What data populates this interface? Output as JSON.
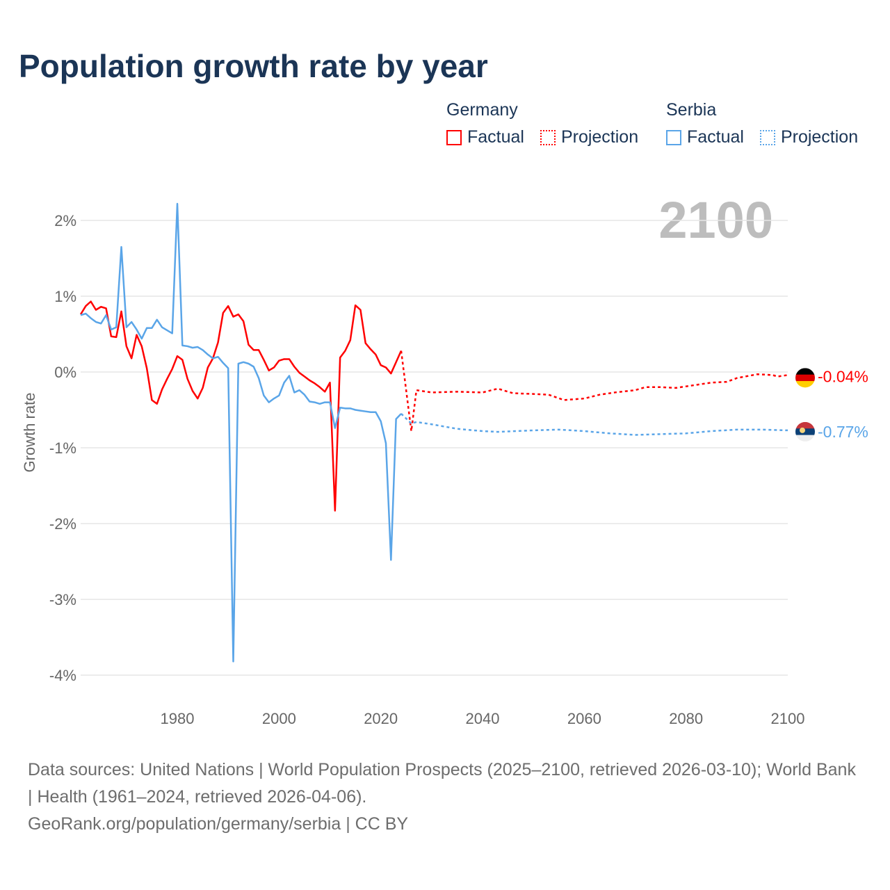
{
  "chart_data": {
    "type": "line",
    "title": "Population growth rate by year",
    "ylabel": "Growth rate",
    "xlabel": "",
    "year_watermark": "2100",
    "xlim": [
      1961,
      2100
    ],
    "ylim": [
      -4.2,
      2.3
    ],
    "x_ticks": [
      1980,
      2000,
      2020,
      2040,
      2060,
      2080,
      2100
    ],
    "y_ticks": [
      {
        "v": 2,
        "label": "2%"
      },
      {
        "v": 1,
        "label": "1%"
      },
      {
        "v": 0,
        "label": "0%"
      },
      {
        "v": -1,
        "label": "-1%"
      },
      {
        "v": -2,
        "label": "-2%"
      },
      {
        "v": -3,
        "label": "-3%"
      },
      {
        "v": -4,
        "label": "-4%"
      }
    ],
    "grid": true,
    "legend_placement": "top-right",
    "series": [
      {
        "name": "Germany",
        "color": "#ff0000",
        "end_label": "-0.04%",
        "flag": "germany-flag",
        "factual_start_year": 1961,
        "factual": [
          0.76,
          0.87,
          0.93,
          0.82,
          0.86,
          0.84,
          0.47,
          0.46,
          0.8,
          0.34,
          0.18,
          0.49,
          0.34,
          0.05,
          -0.37,
          -0.42,
          -0.23,
          -0.09,
          0.04,
          0.21,
          0.16,
          -0.09,
          -0.25,
          -0.35,
          -0.21,
          0.06,
          0.18,
          0.39,
          0.78,
          0.87,
          0.73,
          0.76,
          0.67,
          0.36,
          0.29,
          0.29,
          0.16,
          0.02,
          0.06,
          0.15,
          0.17,
          0.17,
          0.07,
          -0.01,
          -0.06,
          -0.11,
          -0.15,
          -0.2,
          -0.26,
          -0.14,
          -1.83,
          0.19,
          0.28,
          0.42,
          0.88,
          0.82,
          0.38,
          0.3,
          0.23,
          0.09,
          0.06,
          -0.02,
          0.13,
          0.28
        ],
        "projection": [
          [
            2024,
            0.28
          ],
          [
            2026,
            -0.78
          ],
          [
            2027,
            -0.24
          ],
          [
            2030,
            -0.27
          ],
          [
            2035,
            -0.26
          ],
          [
            2040,
            -0.27
          ],
          [
            2043,
            -0.22
          ],
          [
            2046,
            -0.28
          ],
          [
            2050,
            -0.29
          ],
          [
            2053,
            -0.3
          ],
          [
            2056,
            -0.37
          ],
          [
            2060,
            -0.35
          ],
          [
            2063,
            -0.3
          ],
          [
            2066,
            -0.27
          ],
          [
            2070,
            -0.24
          ],
          [
            2072,
            -0.2
          ],
          [
            2075,
            -0.2
          ],
          [
            2078,
            -0.21
          ],
          [
            2082,
            -0.17
          ],
          [
            2085,
            -0.14
          ],
          [
            2088,
            -0.13
          ],
          [
            2090,
            -0.08
          ],
          [
            2094,
            -0.03
          ],
          [
            2097,
            -0.04
          ],
          [
            2098,
            -0.06
          ],
          [
            2100,
            -0.04
          ]
        ]
      },
      {
        "name": "Serbia",
        "color": "#5aa5e8",
        "end_label": "-0.77%",
        "flag": "serbia-flag",
        "factual_start_year": 1961,
        "factual": [
          0.75,
          0.77,
          0.71,
          0.66,
          0.64,
          0.75,
          0.56,
          0.59,
          1.65,
          0.59,
          0.66,
          0.56,
          0.44,
          0.58,
          0.58,
          0.69,
          0.59,
          0.55,
          0.51,
          2.22,
          0.35,
          0.34,
          0.32,
          0.33,
          0.29,
          0.23,
          0.18,
          0.2,
          0.12,
          0.05,
          -3.82,
          0.11,
          0.13,
          0.11,
          0.07,
          -0.08,
          -0.31,
          -0.4,
          -0.35,
          -0.31,
          -0.14,
          -0.05,
          -0.27,
          -0.24,
          -0.3,
          -0.39,
          -0.4,
          -0.42,
          -0.4,
          -0.4,
          -0.74,
          -0.47,
          -0.48,
          -0.48,
          -0.5,
          -0.51,
          -0.52,
          -0.53,
          -0.53,
          -0.65,
          -0.94,
          -2.48,
          -0.62,
          -0.55
        ],
        "projection": [
          [
            2024,
            -0.55
          ],
          [
            2026,
            -0.68
          ],
          [
            2027,
            -0.66
          ],
          [
            2030,
            -0.69
          ],
          [
            2035,
            -0.75
          ],
          [
            2040,
            -0.78
          ],
          [
            2043,
            -0.79
          ],
          [
            2050,
            -0.77
          ],
          [
            2055,
            -0.76
          ],
          [
            2060,
            -0.78
          ],
          [
            2065,
            -0.81
          ],
          [
            2070,
            -0.83
          ],
          [
            2075,
            -0.82
          ],
          [
            2080,
            -0.81
          ],
          [
            2085,
            -0.78
          ],
          [
            2090,
            -0.76
          ],
          [
            2095,
            -0.76
          ],
          [
            2100,
            -0.77
          ]
        ]
      }
    ]
  },
  "legend": {
    "groups": [
      {
        "name": "Germany",
        "factual": "Factual",
        "projection": "Projection"
      },
      {
        "name": "Serbia",
        "factual": "Factual",
        "projection": "Projection"
      }
    ]
  },
  "footer": {
    "sources": "Data sources: United Nations | World Population Prospects (2025–2100, retrieved 2026-03-10); World Bank | Health (1961–2024, retrieved 2026-04-06).",
    "credit": "GeoRank.org/population/germany/serbia | CC BY"
  }
}
